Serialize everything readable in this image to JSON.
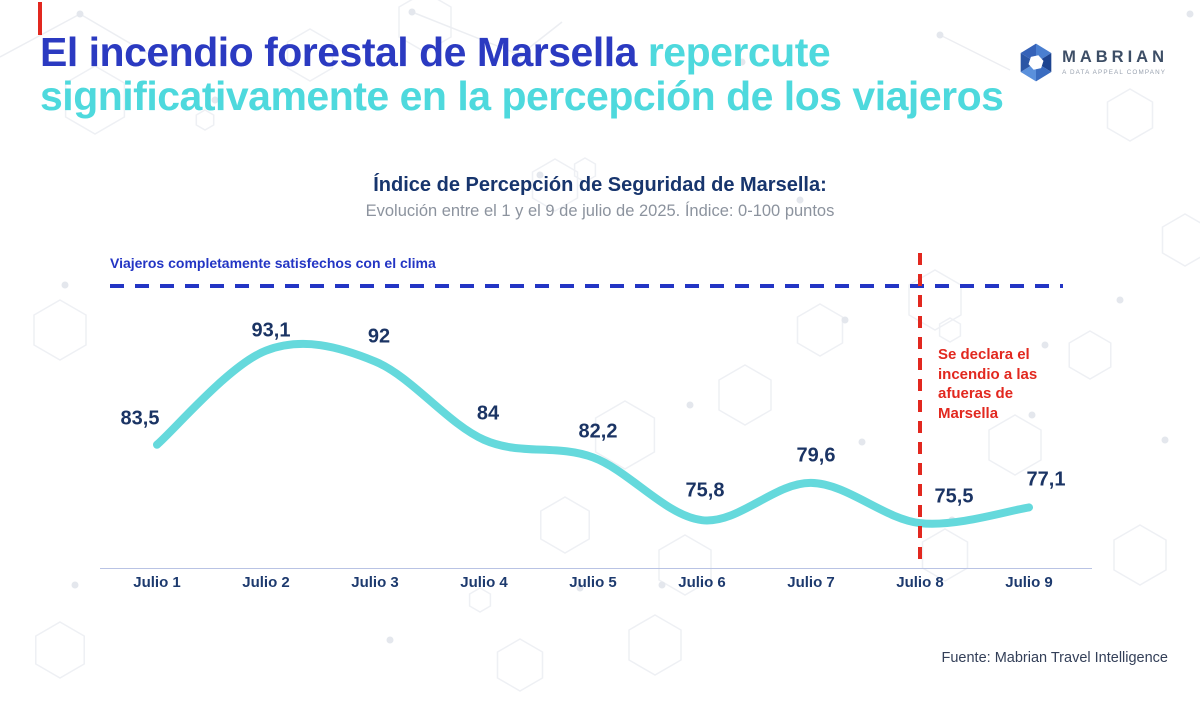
{
  "header": {
    "title": {
      "line1_navy": "El incendio forestal de Marsella",
      "line1_cyan": " repercute",
      "line2_cyan": "significativamente en la percepción de los viajeros"
    },
    "logo": {
      "name": "MABRIAN",
      "tagline": "A DATA APPEAL COMPANY"
    }
  },
  "chart_data": {
    "type": "line",
    "title": "Índice de Percepción de Seguridad de Marsella:",
    "subtitle": "Evolución entre el 1 y el 9 de julio de 2025. Índice: 0-100 puntos",
    "categories": [
      "Julio 1",
      "Julio 2",
      "Julio 3",
      "Julio 4",
      "Julio 5",
      "Julio 6",
      "Julio 7",
      "Julio 8",
      "Julio 9"
    ],
    "values": [
      83.5,
      93.1,
      92,
      84,
      82.2,
      75.8,
      79.6,
      75.5,
      77.1
    ],
    "value_labels": [
      "83,5",
      "93,1",
      "92",
      "84",
      "82,2",
      "75,8",
      "79,6",
      "75,5",
      "77,1"
    ],
    "ylim": [
      0,
      100
    ],
    "grid": false,
    "legend": false,
    "threshold": {
      "label": "Viajeros completamente satisfechos con el clima",
      "value": 100
    },
    "event": {
      "category": "Julio 8",
      "annotation_lines": [
        "Se declara el",
        "incendio a las",
        "afueras de",
        "Marsella"
      ]
    },
    "line_color": "#65d9dc",
    "label_color": "#1b3464",
    "threshold_color": "#2335c4",
    "event_color": "#e2281f"
  },
  "footer": {
    "source": "Fuente: Mabrian Travel Intelligence"
  },
  "colors": {
    "title_navy": "#2b3ac1",
    "title_cyan": "#4ed9dd",
    "heading_navy": "#17356d",
    "subtitle_gray": "#8c939e",
    "axis": "#b9c3e4"
  }
}
